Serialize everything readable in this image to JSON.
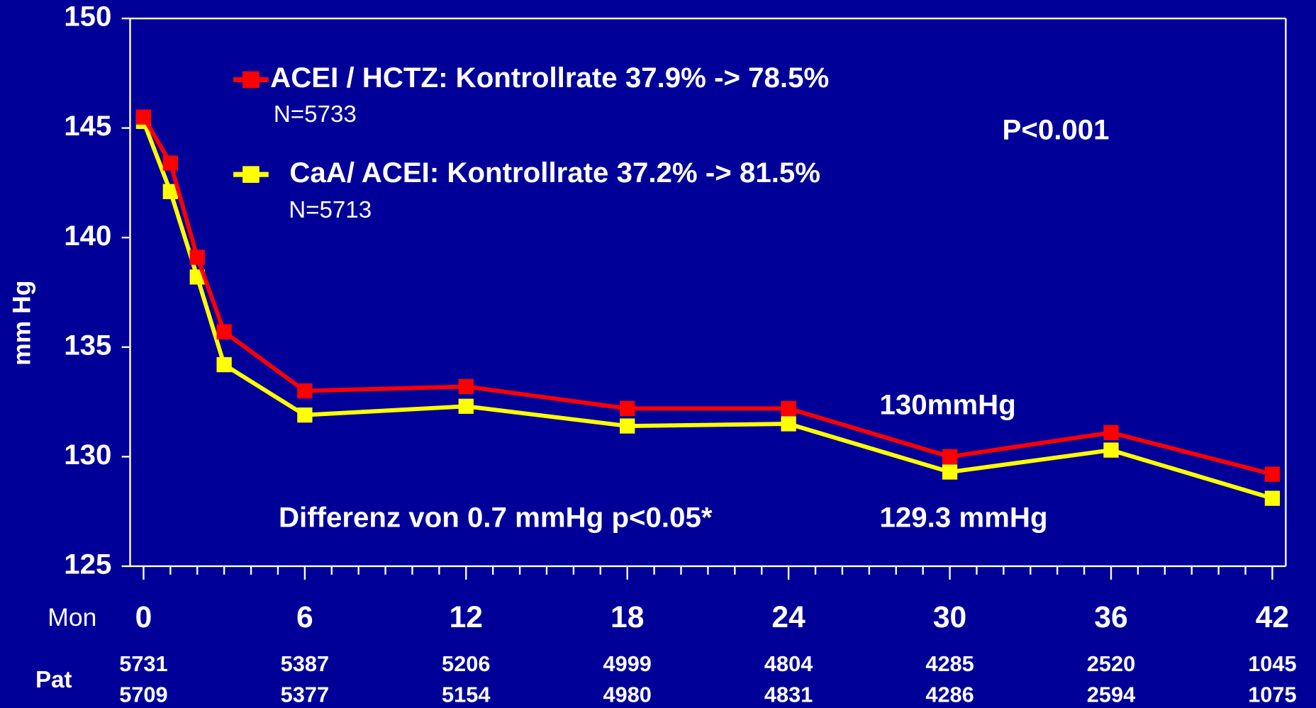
{
  "chart_data": {
    "type": "line",
    "y_label": "mm Hg",
    "x_label": "Mon",
    "x": [
      0,
      1,
      2,
      3,
      6,
      12,
      18,
      24,
      30,
      36,
      42
    ],
    "series": [
      {
        "name": "ACEI / HCTZ: Kontrollrate 37.9% -> 78.5%",
        "note": "N=5733",
        "color": "#ff0000",
        "values": [
          145.5,
          143.4,
          139.1,
          135.7,
          133.0,
          133.2,
          132.2,
          132.2,
          130.0,
          131.1,
          129.2
        ]
      },
      {
        "name": "CaA/ ACEI: Kontrollrate 37.2% -> 81.5%",
        "note": "N=5713",
        "color": "#ffff00",
        "values": [
          145.3,
          142.1,
          138.2,
          134.2,
          131.9,
          132.3,
          131.4,
          131.5,
          129.3,
          130.3,
          128.1
        ]
      }
    ],
    "xlim": [
      -0.5,
      42.5
    ],
    "xticks": [
      0,
      6,
      12,
      18,
      24,
      30,
      36,
      42
    ],
    "xminorticks": [
      1,
      2,
      3,
      4,
      5,
      7,
      8,
      9,
      10,
      11,
      13,
      14,
      15,
      16,
      17,
      19,
      20,
      21,
      22,
      23,
      25,
      26,
      27,
      28,
      29,
      31,
      32,
      33,
      34,
      35,
      37,
      38,
      39,
      40,
      41
    ],
    "ylim": [
      125,
      150
    ],
    "yticks": [
      125,
      130,
      135,
      140,
      145,
      150
    ],
    "patients": {
      "label": "Pat",
      "rows": [
        [
          5731,
          5387,
          5206,
          4999,
          4804,
          4285,
          2520,
          1045
        ],
        [
          5709,
          5377,
          5154,
          4980,
          4831,
          4286,
          2594,
          1075
        ]
      ]
    },
    "annotations": [
      "P<0.001",
      "130mmHg",
      "Differenz von 0.7 mmHg p<0.05*",
      "129.3 mmHg"
    ]
  }
}
